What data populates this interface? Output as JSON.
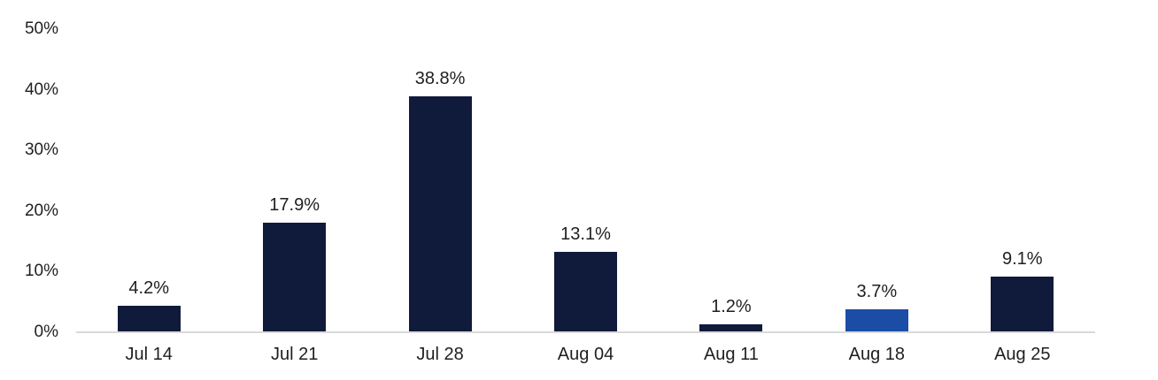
{
  "chart_data": {
    "type": "bar",
    "title": "",
    "xlabel": "",
    "ylabel": "",
    "categories": [
      "Jul 14",
      "Jul 21",
      "Jul 28",
      "Aug 04",
      "Aug 11",
      "Aug 18",
      "Aug 25"
    ],
    "values": [
      4.2,
      17.9,
      38.8,
      13.1,
      1.2,
      3.7,
      9.1
    ],
    "data_labels": [
      "4.2%",
      "17.9%",
      "38.8%",
      "13.1%",
      "1.2%",
      "3.7%",
      "9.1%"
    ],
    "highlight_index": 5,
    "highlighted_category": "Aug 18",
    "y_ticks": [
      {
        "value": 0,
        "label": "0%"
      },
      {
        "value": 10,
        "label": "10%"
      },
      {
        "value": 20,
        "label": "20%"
      },
      {
        "value": 30,
        "label": "30%"
      },
      {
        "value": 40,
        "label": "40%"
      },
      {
        "value": 50,
        "label": "50%"
      }
    ],
    "ylim": [
      0,
      50
    ],
    "grid": false,
    "legend": false,
    "colors": {
      "bar_default": "#101a3b",
      "bar_highlight": "#1b4da6",
      "axis_line": "#d9d9d9",
      "text": "#1f1f1f"
    }
  }
}
